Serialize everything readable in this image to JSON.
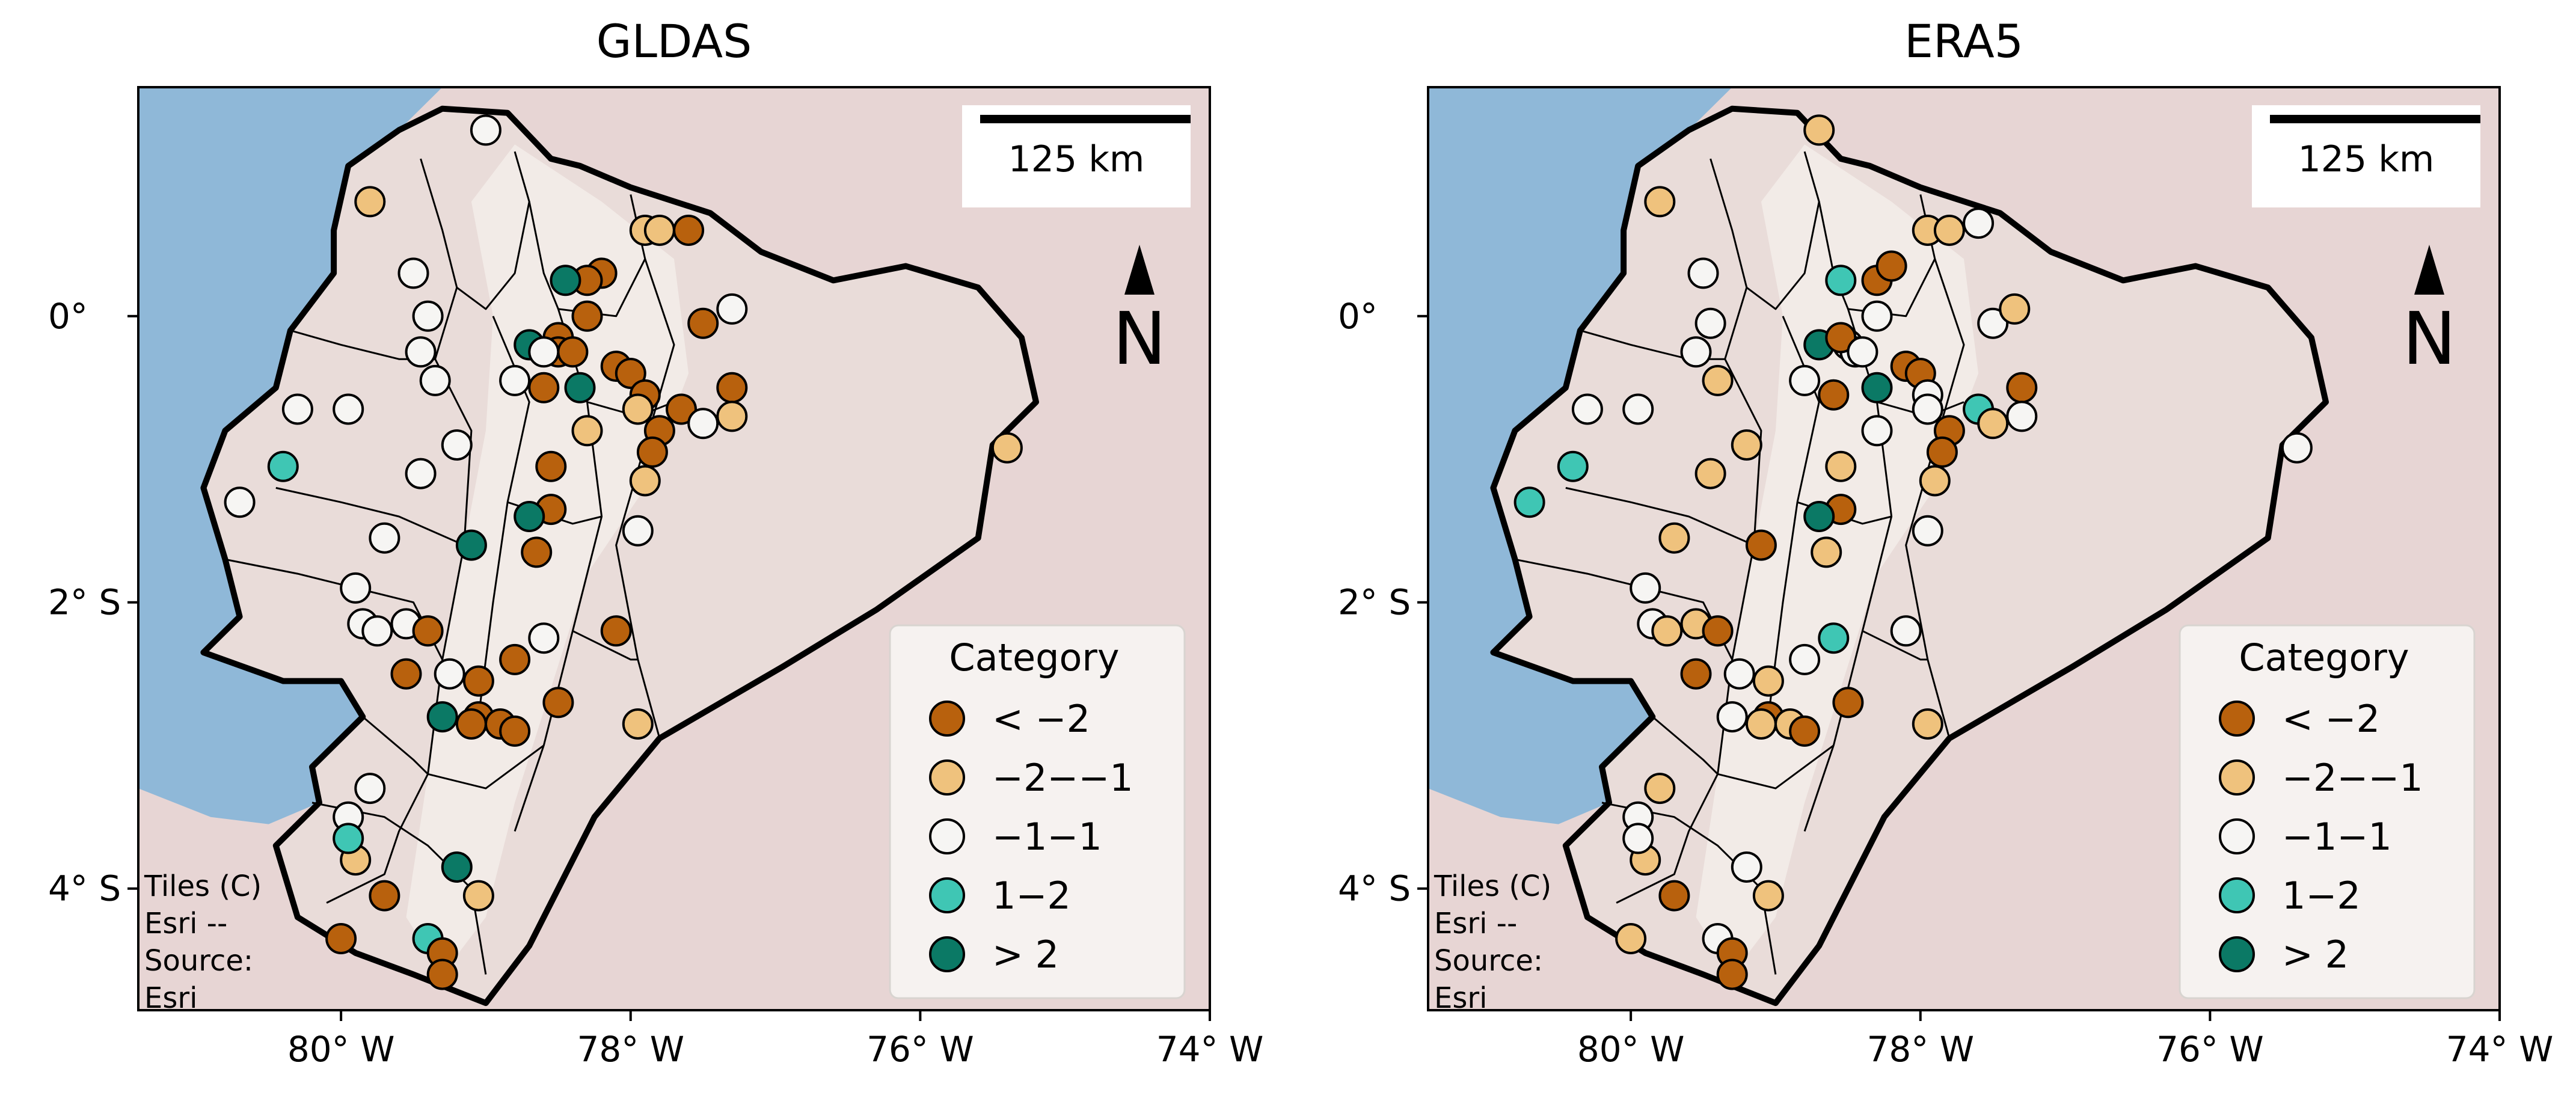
{
  "colors": {
    "ocean": "#8fb8d8",
    "land_outside": "#e7d5d4",
    "land_ecuador": "#e9dcd9",
    "relief": "#f3ece8",
    "border": "#000000",
    "legend_bg": "#f7f4f2",
    "scale_bg": "#ffffff"
  },
  "categories": [
    {
      "label": "< −2",
      "color": "#b8610d"
    },
    {
      "label": "−2−−1",
      "color": "#efc27d"
    },
    {
      "label": "−1−1",
      "color": "#f6f5f3"
    },
    {
      "label": "1−2",
      "color": "#3fc6b4"
    },
    {
      "label": "> 2",
      "color": "#0b7965"
    }
  ],
  "legend_title": "Category",
  "scale_label": "125 km",
  "north_label": "N",
  "attribution": [
    "Tiles (C)",
    "Esri --",
    "Source:",
    "Esri"
  ],
  "x_ticks": [
    {
      "lon": -80,
      "label": "80° W"
    },
    {
      "lon": -78,
      "label": "78° W"
    },
    {
      "lon": -76,
      "label": "76° W"
    },
    {
      "lon": -74,
      "label": "74° W"
    }
  ],
  "y_ticks": [
    {
      "lat": 0,
      "label": "0°"
    },
    {
      "lat": -2,
      "label": "2° S"
    },
    {
      "lat": -4,
      "label": "4° S"
    }
  ],
  "extent": {
    "lon_min": -81.4,
    "lon_max": -74.0,
    "lat_min": -4.85,
    "lat_max": 1.6
  },
  "chart_data": [
    {
      "type": "scatter",
      "title": "GLDAS",
      "legend": "bottom-right",
      "points": [
        [
          -79.0,
          1.3,
          2
        ],
        [
          -79.8,
          0.8,
          1
        ],
        [
          -77.9,
          0.6,
          1
        ],
        [
          -77.8,
          0.6,
          1
        ],
        [
          -77.6,
          0.6,
          0
        ],
        [
          -79.5,
          0.3,
          2
        ],
        [
          -78.2,
          0.3,
          0
        ],
        [
          -78.3,
          0.25,
          0
        ],
        [
          -78.45,
          0.25,
          4
        ],
        [
          -79.4,
          0.0,
          2
        ],
        [
          -78.3,
          0.0,
          0
        ],
        [
          -77.5,
          -0.05,
          0
        ],
        [
          -77.3,
          0.05,
          2
        ],
        [
          -79.45,
          -0.25,
          2
        ],
        [
          -78.7,
          -0.2,
          4
        ],
        [
          -78.5,
          -0.15,
          0
        ],
        [
          -78.5,
          -0.25,
          0
        ],
        [
          -78.4,
          -0.25,
          0
        ],
        [
          -78.6,
          -0.25,
          2
        ],
        [
          -78.1,
          -0.35,
          0
        ],
        [
          -78.0,
          -0.4,
          0
        ],
        [
          -79.35,
          -0.45,
          2
        ],
        [
          -78.8,
          -0.45,
          2
        ],
        [
          -78.6,
          -0.5,
          0
        ],
        [
          -78.35,
          -0.5,
          4
        ],
        [
          -77.9,
          -0.55,
          0
        ],
        [
          -77.3,
          -0.5,
          0
        ],
        [
          -80.3,
          -0.65,
          2
        ],
        [
          -79.95,
          -0.65,
          2
        ],
        [
          -77.95,
          -0.65,
          1
        ],
        [
          -77.65,
          -0.65,
          0
        ],
        [
          -77.5,
          -0.75,
          2
        ],
        [
          -77.3,
          -0.7,
          1
        ],
        [
          -78.3,
          -0.8,
          1
        ],
        [
          -77.8,
          -0.8,
          0
        ],
        [
          -77.85,
          -0.95,
          0
        ],
        [
          -79.2,
          -0.9,
          2
        ],
        [
          -75.4,
          -0.92,
          1
        ],
        [
          -80.4,
          -1.05,
          3
        ],
        [
          -78.55,
          -1.05,
          0
        ],
        [
          -77.9,
          -1.15,
          1
        ],
        [
          -79.45,
          -1.1,
          2
        ],
        [
          -80.7,
          -1.3,
          2
        ],
        [
          -78.55,
          -1.35,
          0
        ],
        [
          -78.7,
          -1.4,
          4
        ],
        [
          -77.95,
          -1.5,
          2
        ],
        [
          -79.7,
          -1.55,
          2
        ],
        [
          -79.1,
          -1.6,
          4
        ],
        [
          -78.65,
          -1.65,
          0
        ],
        [
          -79.9,
          -1.9,
          2
        ],
        [
          -79.85,
          -2.15,
          2
        ],
        [
          -79.75,
          -2.2,
          2
        ],
        [
          -79.55,
          -2.15,
          2
        ],
        [
          -79.4,
          -2.2,
          0
        ],
        [
          -78.6,
          -2.25,
          2
        ],
        [
          -78.1,
          -2.2,
          0
        ],
        [
          -78.8,
          -2.4,
          0
        ],
        [
          -79.55,
          -2.5,
          0
        ],
        [
          -79.25,
          -2.5,
          2
        ],
        [
          -79.05,
          -2.55,
          0
        ],
        [
          -78.5,
          -2.7,
          0
        ],
        [
          -79.3,
          -2.8,
          4
        ],
        [
          -79.05,
          -2.8,
          0
        ],
        [
          -78.9,
          -2.85,
          0
        ],
        [
          -79.1,
          -2.85,
          0
        ],
        [
          -78.8,
          -2.9,
          0
        ],
        [
          -77.95,
          -2.85,
          1
        ],
        [
          -79.8,
          -3.3,
          2
        ],
        [
          -79.95,
          -3.5,
          2
        ],
        [
          -79.9,
          -3.8,
          1
        ],
        [
          -79.95,
          -3.65,
          3
        ],
        [
          -79.2,
          -3.85,
          4
        ],
        [
          -79.7,
          -4.05,
          0
        ],
        [
          -79.05,
          -4.05,
          1
        ],
        [
          -80.0,
          -4.35,
          0
        ],
        [
          -79.4,
          -4.35,
          3
        ],
        [
          -79.3,
          -4.45,
          0
        ],
        [
          -79.3,
          -4.6,
          0
        ]
      ]
    },
    {
      "type": "scatter",
      "title": "ERA5",
      "legend": "bottom-right",
      "points": [
        [
          -78.7,
          1.3,
          1
        ],
        [
          -79.8,
          0.8,
          1
        ],
        [
          -77.95,
          0.6,
          1
        ],
        [
          -77.8,
          0.6,
          1
        ],
        [
          -77.6,
          0.65,
          2
        ],
        [
          -79.5,
          0.3,
          2
        ],
        [
          -78.55,
          0.25,
          3
        ],
        [
          -78.3,
          0.25,
          0
        ],
        [
          -78.2,
          0.35,
          0
        ],
        [
          -79.45,
          -0.05,
          2
        ],
        [
          -78.3,
          0.0,
          2
        ],
        [
          -77.5,
          -0.05,
          2
        ],
        [
          -77.35,
          0.05,
          1
        ],
        [
          -79.55,
          -0.25,
          2
        ],
        [
          -78.7,
          -0.2,
          4
        ],
        [
          -78.5,
          -0.2,
          2
        ],
        [
          -78.45,
          -0.25,
          2
        ],
        [
          -78.55,
          -0.15,
          0
        ],
        [
          -78.4,
          -0.25,
          2
        ],
        [
          -78.1,
          -0.35,
          0
        ],
        [
          -78.0,
          -0.4,
          0
        ],
        [
          -79.4,
          -0.45,
          1
        ],
        [
          -78.8,
          -0.45,
          2
        ],
        [
          -78.6,
          -0.55,
          0
        ],
        [
          -78.3,
          -0.5,
          4
        ],
        [
          -77.95,
          -0.55,
          2
        ],
        [
          -77.3,
          -0.5,
          0
        ],
        [
          -80.3,
          -0.65,
          2
        ],
        [
          -79.95,
          -0.65,
          2
        ],
        [
          -77.95,
          -0.65,
          2
        ],
        [
          -77.6,
          -0.65,
          3
        ],
        [
          -77.5,
          -0.75,
          1
        ],
        [
          -77.3,
          -0.7,
          2
        ],
        [
          -78.3,
          -0.8,
          2
        ],
        [
          -77.8,
          -0.8,
          0
        ],
        [
          -77.85,
          -0.95,
          0
        ],
        [
          -79.2,
          -0.9,
          1
        ],
        [
          -75.4,
          -0.92,
          2
        ],
        [
          -80.4,
          -1.05,
          3
        ],
        [
          -78.55,
          -1.05,
          1
        ],
        [
          -77.9,
          -1.15,
          1
        ],
        [
          -79.45,
          -1.1,
          1
        ],
        [
          -80.7,
          -1.3,
          3
        ],
        [
          -78.55,
          -1.35,
          0
        ],
        [
          -78.7,
          -1.4,
          4
        ],
        [
          -77.95,
          -1.5,
          2
        ],
        [
          -79.7,
          -1.55,
          1
        ],
        [
          -79.1,
          -1.6,
          0
        ],
        [
          -78.65,
          -1.65,
          1
        ],
        [
          -79.9,
          -1.9,
          2
        ],
        [
          -79.85,
          -2.15,
          2
        ],
        [
          -79.75,
          -2.2,
          1
        ],
        [
          -79.55,
          -2.15,
          1
        ],
        [
          -79.4,
          -2.2,
          0
        ],
        [
          -78.6,
          -2.25,
          3
        ],
        [
          -78.1,
          -2.2,
          2
        ],
        [
          -78.8,
          -2.4,
          2
        ],
        [
          -79.55,
          -2.5,
          0
        ],
        [
          -79.25,
          -2.5,
          2
        ],
        [
          -79.05,
          -2.55,
          1
        ],
        [
          -78.5,
          -2.7,
          0
        ],
        [
          -79.3,
          -2.8,
          2
        ],
        [
          -79.05,
          -2.8,
          0
        ],
        [
          -78.9,
          -2.85,
          1
        ],
        [
          -79.1,
          -2.85,
          1
        ],
        [
          -78.8,
          -2.9,
          0
        ],
        [
          -77.95,
          -2.85,
          1
        ],
        [
          -79.8,
          -3.3,
          1
        ],
        [
          -79.95,
          -3.5,
          2
        ],
        [
          -79.9,
          -3.8,
          1
        ],
        [
          -79.95,
          -3.65,
          2
        ],
        [
          -79.2,
          -3.85,
          2
        ],
        [
          -79.7,
          -4.05,
          0
        ],
        [
          -79.05,
          -4.05,
          1
        ],
        [
          -80.0,
          -4.35,
          1
        ],
        [
          -79.4,
          -4.35,
          2
        ],
        [
          -79.3,
          -4.45,
          0
        ],
        [
          -79.3,
          -4.6,
          0
        ]
      ]
    }
  ]
}
